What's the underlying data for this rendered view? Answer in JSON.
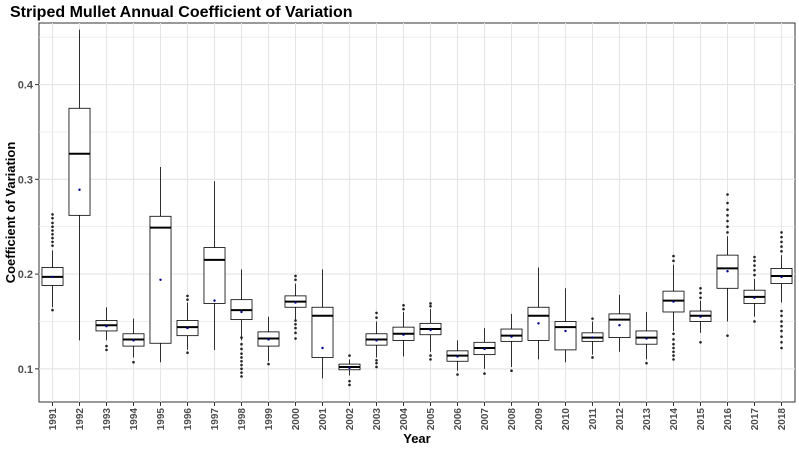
{
  "chart_data": {
    "type": "boxplot",
    "title": "Striped Mullet Annual Coefficient of Variation",
    "xlabel": "Year",
    "ylabel": "Coefficient of Variation",
    "ylim": [
      0.065,
      0.465
    ],
    "yticks": [
      0.1,
      0.2,
      0.3,
      0.4
    ],
    "grid": true,
    "legend": "none",
    "colors": {
      "box": "#000000",
      "mean_point": "#00008b",
      "grid": "#e5e5e5",
      "tick": "#4d4d4d"
    },
    "categories": [
      "1991",
      "1992",
      "1993",
      "1994",
      "1995",
      "1996",
      "1997",
      "1998",
      "1999",
      "2000",
      "2001",
      "2002",
      "2003",
      "2004",
      "2005",
      "2006",
      "2007",
      "2008",
      "2009",
      "2010",
      "2011",
      "2012",
      "2013",
      "2014",
      "2015",
      "2016",
      "2017",
      "2018"
    ],
    "boxes": [
      {
        "min": 0.165,
        "q1": 0.188,
        "median": 0.197,
        "q3": 0.207,
        "max": 0.225,
        "mean": 0.197,
        "outliers": [
          0.162,
          0.23,
          0.234,
          0.238,
          0.242,
          0.246,
          0.25,
          0.254,
          0.259,
          0.263
        ]
      },
      {
        "min": 0.13,
        "q1": 0.262,
        "median": 0.327,
        "q3": 0.375,
        "max": 0.458,
        "mean": 0.289,
        "outliers": []
      },
      {
        "min": 0.13,
        "q1": 0.14,
        "median": 0.146,
        "q3": 0.151,
        "max": 0.165,
        "mean": 0.145,
        "outliers": [
          0.12,
          0.124
        ]
      },
      {
        "min": 0.112,
        "q1": 0.124,
        "median": 0.131,
        "q3": 0.137,
        "max": 0.153,
        "mean": 0.13,
        "outliers": [
          0.107
        ]
      },
      {
        "min": 0.107,
        "q1": 0.127,
        "median": 0.249,
        "q3": 0.261,
        "max": 0.313,
        "mean": 0.194,
        "outliers": []
      },
      {
        "min": 0.12,
        "q1": 0.135,
        "median": 0.144,
        "q3": 0.151,
        "max": 0.17,
        "mean": 0.143,
        "outliers": [
          0.117,
          0.173,
          0.177
        ]
      },
      {
        "min": 0.12,
        "q1": 0.169,
        "median": 0.215,
        "q3": 0.228,
        "max": 0.298,
        "mean": 0.172,
        "outliers": []
      },
      {
        "min": 0.13,
        "q1": 0.152,
        "median": 0.162,
        "q3": 0.173,
        "max": 0.205,
        "mean": 0.16,
        "outliers": [
          0.092,
          0.096,
          0.1,
          0.104,
          0.108,
          0.112,
          0.116,
          0.121,
          0.126,
          0.133
        ]
      },
      {
        "min": 0.108,
        "q1": 0.124,
        "median": 0.132,
        "q3": 0.139,
        "max": 0.155,
        "mean": 0.131,
        "outliers": [
          0.105
        ]
      },
      {
        "min": 0.15,
        "q1": 0.165,
        "median": 0.171,
        "q3": 0.177,
        "max": 0.19,
        "mean": 0.17,
        "outliers": [
          0.132,
          0.138,
          0.143,
          0.147,
          0.151,
          0.194,
          0.198
        ]
      },
      {
        "min": 0.09,
        "q1": 0.112,
        "median": 0.156,
        "q3": 0.165,
        "max": 0.205,
        "mean": 0.122,
        "outliers": []
      },
      {
        "min": 0.093,
        "q1": 0.099,
        "median": 0.102,
        "q3": 0.105,
        "max": 0.11,
        "mean": 0.101,
        "outliers": [
          0.083,
          0.087,
          0.114
        ]
      },
      {
        "min": 0.112,
        "q1": 0.125,
        "median": 0.131,
        "q3": 0.137,
        "max": 0.15,
        "mean": 0.13,
        "outliers": [
          0.102,
          0.106,
          0.109,
          0.154,
          0.159
        ]
      },
      {
        "min": 0.113,
        "q1": 0.13,
        "median": 0.137,
        "q3": 0.144,
        "max": 0.16,
        "mean": 0.136,
        "outliers": [
          0.163,
          0.167
        ]
      },
      {
        "min": 0.118,
        "q1": 0.136,
        "median": 0.142,
        "q3": 0.148,
        "max": 0.163,
        "mean": 0.141,
        "outliers": [
          0.11,
          0.114,
          0.166,
          0.169
        ]
      },
      {
        "min": 0.098,
        "q1": 0.108,
        "median": 0.114,
        "q3": 0.119,
        "max": 0.13,
        "mean": 0.113,
        "outliers": [
          0.094
        ]
      },
      {
        "min": 0.1,
        "q1": 0.115,
        "median": 0.122,
        "q3": 0.128,
        "max": 0.143,
        "mean": 0.121,
        "outliers": [
          0.095
        ]
      },
      {
        "min": 0.102,
        "q1": 0.129,
        "median": 0.135,
        "q3": 0.142,
        "max": 0.158,
        "mean": 0.134,
        "outliers": [
          0.098
        ]
      },
      {
        "min": 0.11,
        "q1": 0.13,
        "median": 0.156,
        "q3": 0.165,
        "max": 0.207,
        "mean": 0.148,
        "outliers": []
      },
      {
        "min": 0.107,
        "q1": 0.12,
        "median": 0.144,
        "q3": 0.15,
        "max": 0.185,
        "mean": 0.14,
        "outliers": []
      },
      {
        "min": 0.115,
        "q1": 0.129,
        "median": 0.133,
        "q3": 0.138,
        "max": 0.15,
        "mean": 0.133,
        "outliers": [
          0.112,
          0.153
        ]
      },
      {
        "min": 0.118,
        "q1": 0.133,
        "median": 0.152,
        "q3": 0.158,
        "max": 0.178,
        "mean": 0.146,
        "outliers": []
      },
      {
        "min": 0.11,
        "q1": 0.126,
        "median": 0.133,
        "q3": 0.14,
        "max": 0.16,
        "mean": 0.132,
        "outliers": [
          0.106
        ]
      },
      {
        "min": 0.14,
        "q1": 0.16,
        "median": 0.172,
        "q3": 0.182,
        "max": 0.21,
        "mean": 0.171,
        "outliers": [
          0.11,
          0.114,
          0.118,
          0.122,
          0.126,
          0.131,
          0.137,
          0.214,
          0.219
        ]
      },
      {
        "min": 0.138,
        "q1": 0.15,
        "median": 0.156,
        "q3": 0.161,
        "max": 0.172,
        "mean": 0.155,
        "outliers": [
          0.128,
          0.175,
          0.18,
          0.185
        ]
      },
      {
        "min": 0.15,
        "q1": 0.185,
        "median": 0.206,
        "q3": 0.22,
        "max": 0.24,
        "mean": 0.203,
        "outliers": [
          0.135,
          0.244,
          0.25,
          0.256,
          0.262,
          0.268,
          0.275,
          0.284
        ]
      },
      {
        "min": 0.155,
        "q1": 0.169,
        "median": 0.176,
        "q3": 0.183,
        "max": 0.195,
        "mean": 0.175,
        "outliers": [
          0.15,
          0.199,
          0.204,
          0.209,
          0.214,
          0.218
        ]
      },
      {
        "min": 0.17,
        "q1": 0.19,
        "median": 0.198,
        "q3": 0.206,
        "max": 0.22,
        "mean": 0.197,
        "outliers": [
          0.122,
          0.128,
          0.134,
          0.14,
          0.145,
          0.15,
          0.156,
          0.161,
          0.224,
          0.229,
          0.234,
          0.239,
          0.244
        ]
      }
    ]
  }
}
